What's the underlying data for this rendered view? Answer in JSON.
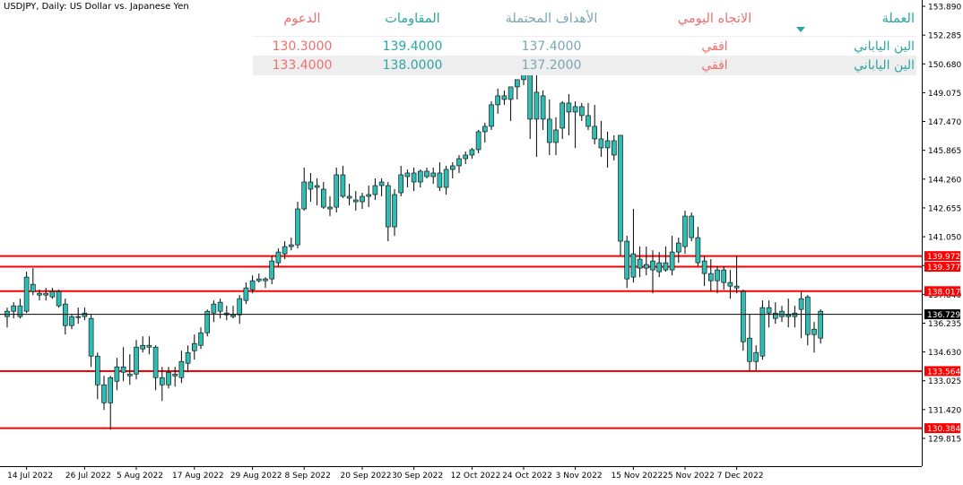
{
  "chart_data": {
    "type": "candlestick",
    "title": "USDJPY, Daily:  US Dollar vs. Japanese Yen",
    "y_range": [
      129.0,
      154.7
    ],
    "y_ticks": [
      "153.890",
      "152.285",
      "150.680",
      "149.075",
      "147.470",
      "145.865",
      "144.260",
      "142.655",
      "141.050",
      "139.445",
      "137.840",
      "136.235",
      "134.630",
      "133.025",
      "131.420",
      "129.815"
    ],
    "x_tick_labels": [
      "14 Jul 2022",
      "26 Jul 2022",
      "5 Aug 2022",
      "17 Aug 2022",
      "29 Aug 2022",
      "8 Sep 2022",
      "20 Sep 2022",
      "30 Sep 2022",
      "12 Oct 2022",
      "24 Oct 2022",
      "3 Nov 2022",
      "15 Nov 2022",
      "25 Nov 2022",
      "7 Dec 2022"
    ],
    "x_tick_index": [
      3,
      12,
      20,
      29,
      38,
      46,
      55,
      63,
      72,
      80,
      88,
      97,
      105,
      113
    ],
    "current_price": "136.729",
    "horizontal_levels": [
      {
        "value": 139.972,
        "label": "139.972",
        "color": "#ff0000"
      },
      {
        "value": 139.377,
        "label": "139.377",
        "color": "#ff0000"
      },
      {
        "value": 138.017,
        "label": "138.017",
        "color": "#ff0000"
      },
      {
        "value": 133.564,
        "label": "133.564",
        "color": "#ff0000"
      },
      {
        "value": 130.384,
        "label": "130.384",
        "color": "#ff0000"
      }
    ],
    "candles": [
      [
        0,
        136.6,
        137.1,
        136.0,
        136.9
      ],
      [
        1,
        136.9,
        137.4,
        136.5,
        137.2
      ],
      [
        2,
        137.2,
        137.6,
        136.5,
        136.6
      ],
      [
        3,
        136.9,
        139.1,
        136.8,
        138.8
      ],
      [
        4,
        138.4,
        139.3,
        137.8,
        138.0
      ],
      [
        5,
        137.9,
        138.1,
        137.5,
        137.8
      ],
      [
        6,
        137.9,
        138.2,
        137.5,
        137.8
      ],
      [
        7,
        137.7,
        138.2,
        137.6,
        138.0
      ],
      [
        8,
        138.0,
        138.1,
        137.1,
        137.2
      ],
      [
        9,
        137.3,
        137.6,
        135.6,
        136.1
      ],
      [
        10,
        136.1,
        136.7,
        135.9,
        136.6
      ],
      [
        11,
        136.6,
        137.1,
        136.2,
        136.6
      ],
      [
        12,
        136.8,
        137.1,
        136.4,
        136.6
      ],
      [
        13,
        136.5,
        136.7,
        133.8,
        134.4
      ],
      [
        14,
        134.4,
        134.6,
        132.0,
        132.8
      ],
      [
        15,
        132.8,
        133.3,
        131.4,
        131.8
      ],
      [
        16,
        131.8,
        133.3,
        130.3,
        133.2
      ],
      [
        17,
        133.0,
        134.3,
        132.5,
        133.8
      ],
      [
        18,
        133.8,
        134.9,
        133.0,
        133.5
      ],
      [
        19,
        133.3,
        134.5,
        132.8,
        133.4
      ],
      [
        20,
        133.4,
        135.3,
        133.1,
        134.9
      ],
      [
        21,
        134.8,
        135.5,
        134.6,
        135.0
      ],
      [
        22,
        135.0,
        135.5,
        134.5,
        134.9
      ],
      [
        23,
        134.9,
        135.0,
        132.5,
        133.2
      ],
      [
        24,
        133.2,
        133.8,
        131.9,
        132.8
      ],
      [
        25,
        132.8,
        133.8,
        132.6,
        133.5
      ],
      [
        26,
        133.4,
        133.8,
        132.7,
        133.3
      ],
      [
        27,
        133.2,
        134.7,
        132.9,
        134.1
      ],
      [
        28,
        134.0,
        135.0,
        133.5,
        134.6
      ],
      [
        29,
        134.7,
        135.6,
        134.2,
        135.1
      ],
      [
        30,
        135.0,
        136.0,
        134.8,
        135.7
      ],
      [
        31,
        135.7,
        137.0,
        135.5,
        136.9
      ],
      [
        32,
        136.8,
        137.5,
        136.3,
        137.3
      ],
      [
        33,
        137.4,
        137.6,
        136.5,
        136.9
      ],
      [
        34,
        136.8,
        137.2,
        136.4,
        136.7
      ],
      [
        35,
        136.7,
        137.2,
        136.5,
        136.6
      ],
      [
        36,
        136.7,
        137.8,
        136.2,
        137.6
      ],
      [
        37,
        137.5,
        138.5,
        137.3,
        138.2
      ],
      [
        38,
        138.1,
        138.9,
        137.9,
        138.6
      ],
      [
        39,
        138.6,
        139.0,
        138.5,
        138.7
      ],
      [
        40,
        138.7,
        138.8,
        138.2,
        138.6
      ],
      [
        41,
        138.7,
        140.0,
        138.4,
        139.7
      ],
      [
        42,
        139.6,
        140.4,
        139.4,
        140.2
      ],
      [
        43,
        140.1,
        140.8,
        139.8,
        140.5
      ],
      [
        44,
        140.5,
        141.0,
        140.3,
        140.6
      ],
      [
        45,
        140.6,
        143.0,
        140.4,
        142.6
      ],
      [
        46,
        142.6,
        144.9,
        142.5,
        144.1
      ],
      [
        47,
        144.1,
        144.6,
        143.0,
        143.7
      ],
      [
        48,
        143.8,
        144.3,
        142.8,
        143.9
      ],
      [
        49,
        143.7,
        144.1,
        142.6,
        142.7
      ],
      [
        50,
        142.6,
        143.3,
        142.2,
        142.7
      ],
      [
        51,
        142.7,
        144.9,
        142.4,
        144.5
      ],
      [
        52,
        144.5,
        145.0,
        143.2,
        143.3
      ],
      [
        53,
        143.3,
        144.0,
        142.8,
        143.2
      ],
      [
        54,
        143.1,
        143.6,
        142.5,
        143.0
      ],
      [
        55,
        143.0,
        143.5,
        142.6,
        143.3
      ],
      [
        56,
        143.3,
        143.9,
        142.7,
        143.4
      ],
      [
        57,
        143.4,
        144.3,
        143.1,
        143.9
      ],
      [
        58,
        143.9,
        144.3,
        143.3,
        144.1
      ],
      [
        59,
        143.9,
        144.1,
        140.8,
        141.6
      ],
      [
        60,
        141.6,
        143.7,
        141.1,
        143.4
      ],
      [
        61,
        143.5,
        145.0,
        143.3,
        144.5
      ],
      [
        62,
        144.4,
        144.8,
        143.8,
        144.6
      ],
      [
        63,
        144.6,
        144.9,
        143.6,
        144.1
      ],
      [
        64,
        144.1,
        144.8,
        143.8,
        144.7
      ],
      [
        65,
        144.7,
        144.9,
        144.3,
        144.4
      ],
      [
        66,
        144.4,
        144.9,
        144.0,
        144.6
      ],
      [
        67,
        144.6,
        145.2,
        143.6,
        143.8
      ],
      [
        68,
        143.8,
        145.0,
        143.4,
        144.8
      ],
      [
        69,
        144.8,
        145.2,
        144.3,
        145.0
      ],
      [
        70,
        145.0,
        145.6,
        144.6,
        145.4
      ],
      [
        71,
        145.4,
        145.8,
        145.1,
        145.6
      ],
      [
        72,
        145.6,
        146.0,
        145.4,
        145.9
      ],
      [
        73,
        145.9,
        147.0,
        145.7,
        146.9
      ],
      [
        74,
        146.9,
        147.4,
        146.3,
        147.2
      ],
      [
        75,
        147.2,
        148.6,
        147.0,
        148.4
      ],
      [
        76,
        148.4,
        149.3,
        147.9,
        148.9
      ],
      [
        77,
        148.9,
        149.2,
        148.4,
        148.7
      ],
      [
        78,
        148.7,
        149.4,
        147.5,
        149.4
      ],
      [
        79,
        149.4,
        149.8,
        148.7,
        149.8
      ],
      [
        80,
        149.8,
        151.9,
        149.5,
        150.1
      ],
      [
        81,
        150.1,
        150.9,
        146.5,
        147.6
      ],
      [
        82,
        147.6,
        151.0,
        145.5,
        149.1
      ],
      [
        83,
        148.9,
        149.2,
        147.0,
        147.6
      ],
      [
        84,
        147.6,
        148.7,
        145.6,
        146.3
      ],
      [
        85,
        146.3,
        147.7,
        145.6,
        147.0
      ],
      [
        86,
        147.1,
        148.6,
        146.5,
        148.5
      ],
      [
        87,
        148.5,
        149.0,
        146.7,
        148.0
      ],
      [
        88,
        148.0,
        148.6,
        146.0,
        148.3
      ],
      [
        89,
        148.3,
        148.5,
        147.5,
        147.8
      ],
      [
        90,
        147.8,
        148.5,
        147.0,
        147.2
      ],
      [
        91,
        147.2,
        148.4,
        146.2,
        146.5
      ],
      [
        92,
        146.5,
        147.5,
        145.5,
        146.0
      ],
      [
        93,
        146.0,
        146.9,
        144.9,
        146.4
      ],
      [
        94,
        146.4,
        146.7,
        145.3,
        145.6
      ],
      [
        95,
        146.7,
        146.7,
        140.0,
        140.8
      ],
      [
        96,
        140.8,
        141.1,
        138.2,
        138.7
      ],
      [
        97,
        138.8,
        142.6,
        138.5,
        140.1
      ],
      [
        98,
        139.8,
        140.5,
        138.8,
        139.3
      ],
      [
        99,
        139.3,
        140.5,
        138.9,
        139.5
      ],
      [
        100,
        139.7,
        140.3,
        137.9,
        139.2
      ],
      [
        101,
        139.1,
        140.2,
        138.8,
        139.6
      ],
      [
        102,
        139.6,
        140.5,
        139.1,
        139.2
      ],
      [
        103,
        139.2,
        141.1,
        138.9,
        140.2
      ],
      [
        104,
        140.2,
        141.0,
        139.6,
        140.7
      ],
      [
        105,
        140.5,
        142.5,
        140.1,
        142.2
      ],
      [
        106,
        142.2,
        142.4,
        140.8,
        141.0
      ],
      [
        107,
        141.0,
        141.6,
        139.4,
        139.6
      ],
      [
        108,
        139.7,
        140.0,
        138.3,
        139.0
      ],
      [
        109,
        139.0,
        139.8,
        138.0,
        138.6
      ],
      [
        110,
        138.6,
        139.4,
        137.9,
        139.2
      ],
      [
        111,
        139.2,
        139.4,
        138.1,
        138.5
      ],
      [
        112,
        138.5,
        139.2,
        137.6,
        138.3
      ],
      [
        113,
        138.3,
        140.0,
        137.9,
        138.2
      ],
      [
        114,
        138.0,
        138.1,
        134.7,
        135.2
      ],
      [
        115,
        135.4,
        136.7,
        133.6,
        134.1
      ],
      [
        116,
        134.1,
        135.0,
        133.6,
        134.6
      ],
      [
        117,
        134.4,
        137.5,
        134.2,
        137.1
      ],
      [
        118,
        137.1,
        137.5,
        136.0,
        136.8
      ],
      [
        119,
        136.8,
        137.4,
        136.2,
        136.5
      ],
      [
        120,
        136.6,
        137.2,
        136.3,
        136.9
      ],
      [
        121,
        136.7,
        137.6,
        136.0,
        136.6
      ],
      [
        122,
        136.6,
        137.2,
        136.0,
        136.8
      ],
      [
        123,
        137.0,
        138.0,
        135.4,
        137.6
      ],
      [
        124,
        137.7,
        137.8,
        135.0,
        135.6
      ],
      [
        125,
        135.6,
        136.3,
        134.6,
        135.9
      ],
      [
        126,
        135.4,
        137.0,
        135.1,
        136.9
      ]
    ]
  },
  "table": {
    "headers": {
      "currency": "العملة",
      "trend": "الاتجاه اليومي",
      "targets": "الأهداف المحتملة",
      "resistances": "المقاومات",
      "supports": "الدعوم"
    },
    "rows": [
      {
        "currency": "الين الياباني",
        "trend": "افقي",
        "targets": "137.4000",
        "resistance": "139.4000",
        "support": "130.3000"
      },
      {
        "currency": "الين الياباني",
        "trend": "افقي",
        "targets": "137.2000",
        "resistance": "138.0000",
        "support": "133.4000"
      }
    ]
  },
  "colors": {
    "candle_body": "#2fbcb2",
    "candle_wick": "#000000",
    "level_line": "#ff0000",
    "header_teal": "#2ba7a0",
    "header_red": "#ef6e6e"
  }
}
